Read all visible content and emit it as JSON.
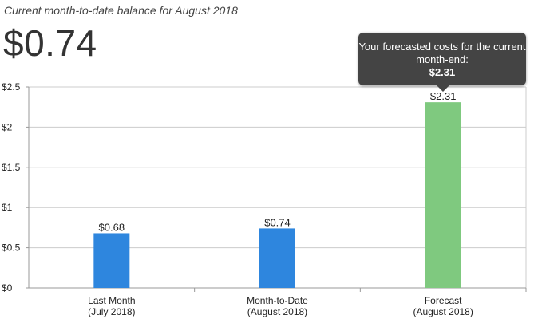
{
  "header": {
    "subtitle": "Current month-to-date balance for August 2018",
    "balance": "$0.74"
  },
  "tooltip": {
    "text": "Your forecasted costs for the current month-end:",
    "amount": "$2.31"
  },
  "colors": {
    "actual": "#2e86de",
    "forecast": "#7fc97f",
    "grid": "#cccccc"
  },
  "chart_data": {
    "type": "bar",
    "categories": [
      [
        "Last Month",
        "(July 2018)"
      ],
      [
        "Month-to-Date",
        "(August 2018)"
      ],
      [
        "Forecast",
        "(August 2018)"
      ]
    ],
    "values": [
      0.68,
      0.74,
      2.31
    ],
    "data_labels": [
      "$0.68",
      "$0.74",
      "$2.31"
    ],
    "ylim": [
      0,
      2.5
    ],
    "yticks": [
      0,
      0.5,
      1,
      1.5,
      2,
      2.5
    ],
    "ytick_labels": [
      "$0",
      "$0.5",
      "$1",
      "$1.5",
      "$2",
      "$2.5"
    ],
    "grid": true
  }
}
